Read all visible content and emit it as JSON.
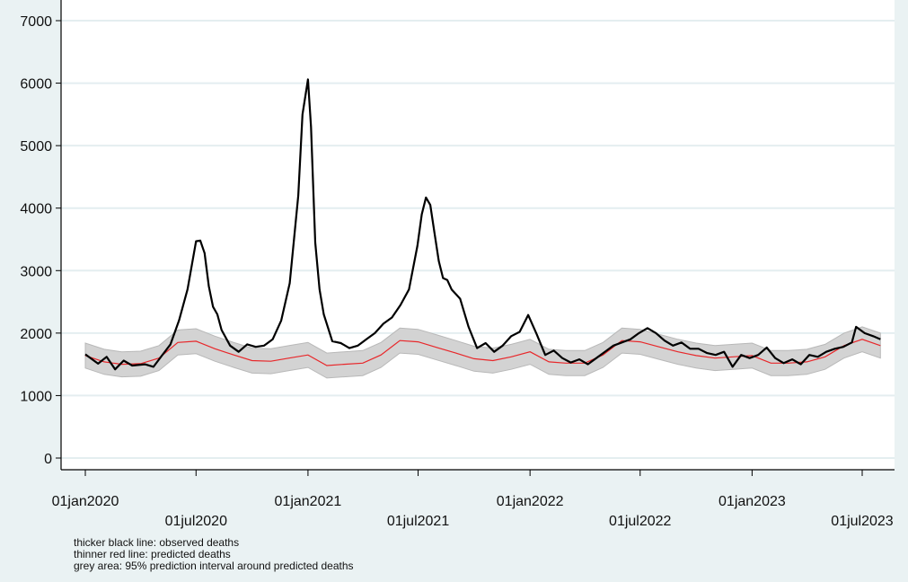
{
  "chart_data": {
    "type": "line",
    "title": "",
    "xlabel": "",
    "ylabel": "",
    "x_range": [
      "2020-01-01",
      "2023-07-31"
    ],
    "ylim": [
      0,
      7000
    ],
    "y_ticks": [
      0,
      1000,
      2000,
      3000,
      4000,
      5000,
      6000,
      7000
    ],
    "x_ticks": [
      {
        "date": "2020-01-01",
        "label": "01jan2020"
      },
      {
        "date": "2020-07-01",
        "label": "01jul2020"
      },
      {
        "date": "2021-01-01",
        "label": "01jan2021"
      },
      {
        "date": "2021-07-01",
        "label": "01jul2021"
      },
      {
        "date": "2022-01-01",
        "label": "01jan2022"
      },
      {
        "date": "2022-07-01",
        "label": "01jul2022"
      },
      {
        "date": "2023-01-01",
        "label": "01jan2023"
      },
      {
        "date": "2023-07-01",
        "label": "01jul2023"
      }
    ],
    "grid": true,
    "colors": {
      "observed": "#000000",
      "predicted": "#e8272a",
      "band": "#d3d3d3",
      "background": "#eaf2f3",
      "plot_bg": "#ffffff",
      "grid": "#e4eef0"
    },
    "series": [
      {
        "role": "observed",
        "points": [
          [
            "2020-01-01",
            1660
          ],
          [
            "2020-01-22",
            1510
          ],
          [
            "2020-02-05",
            1620
          ],
          [
            "2020-02-19",
            1420
          ],
          [
            "2020-03-04",
            1560
          ],
          [
            "2020-03-18",
            1480
          ],
          [
            "2020-04-08",
            1500
          ],
          [
            "2020-04-22",
            1460
          ],
          [
            "2020-05-06",
            1640
          ],
          [
            "2020-05-20",
            1820
          ],
          [
            "2020-06-03",
            2200
          ],
          [
            "2020-06-17",
            2700
          ],
          [
            "2020-07-01",
            3470
          ],
          [
            "2020-07-08",
            3480
          ],
          [
            "2020-07-15",
            3280
          ],
          [
            "2020-07-22",
            2750
          ],
          [
            "2020-07-29",
            2420
          ],
          [
            "2020-08-05",
            2300
          ],
          [
            "2020-08-12",
            2050
          ],
          [
            "2020-08-26",
            1800
          ],
          [
            "2020-09-09",
            1700
          ],
          [
            "2020-09-23",
            1820
          ],
          [
            "2020-10-07",
            1780
          ],
          [
            "2020-10-21",
            1800
          ],
          [
            "2020-11-04",
            1900
          ],
          [
            "2020-11-18",
            2200
          ],
          [
            "2020-12-02",
            2800
          ],
          [
            "2020-12-16",
            4200
          ],
          [
            "2020-12-23",
            5500
          ],
          [
            "2021-01-01",
            6060
          ],
          [
            "2021-01-06",
            5300
          ],
          [
            "2021-01-13",
            3450
          ],
          [
            "2021-01-20",
            2700
          ],
          [
            "2021-01-27",
            2300
          ],
          [
            "2021-02-10",
            1870
          ],
          [
            "2021-02-24",
            1840
          ],
          [
            "2021-03-10",
            1760
          ],
          [
            "2021-03-24",
            1800
          ],
          [
            "2021-04-07",
            1900
          ],
          [
            "2021-04-21",
            2000
          ],
          [
            "2021-05-05",
            2150
          ],
          [
            "2021-05-19",
            2250
          ],
          [
            "2021-06-02",
            2450
          ],
          [
            "2021-06-16",
            2700
          ],
          [
            "2021-06-30",
            3400
          ],
          [
            "2021-07-07",
            3900
          ],
          [
            "2021-07-14",
            4170
          ],
          [
            "2021-07-21",
            4050
          ],
          [
            "2021-07-28",
            3600
          ],
          [
            "2021-08-04",
            3150
          ],
          [
            "2021-08-11",
            2880
          ],
          [
            "2021-08-18",
            2850
          ],
          [
            "2021-08-25",
            2700
          ],
          [
            "2021-09-08",
            2550
          ],
          [
            "2021-09-22",
            2100
          ],
          [
            "2021-10-06",
            1760
          ],
          [
            "2021-10-20",
            1840
          ],
          [
            "2021-11-03",
            1700
          ],
          [
            "2021-11-17",
            1800
          ],
          [
            "2021-12-01",
            1950
          ],
          [
            "2021-12-15",
            2020
          ],
          [
            "2021-12-29",
            2290
          ],
          [
            "2022-01-12",
            1980
          ],
          [
            "2022-01-26",
            1650
          ],
          [
            "2022-02-09",
            1720
          ],
          [
            "2022-02-23",
            1600
          ],
          [
            "2022-03-09",
            1530
          ],
          [
            "2022-03-23",
            1580
          ],
          [
            "2022-04-06",
            1500
          ],
          [
            "2022-04-20",
            1600
          ],
          [
            "2022-05-04",
            1700
          ],
          [
            "2022-05-18",
            1800
          ],
          [
            "2022-06-01",
            1850
          ],
          [
            "2022-06-15",
            1900
          ],
          [
            "2022-06-29",
            2000
          ],
          [
            "2022-07-13",
            2080
          ],
          [
            "2022-07-27",
            2000
          ],
          [
            "2022-08-10",
            1880
          ],
          [
            "2022-08-24",
            1800
          ],
          [
            "2022-09-07",
            1850
          ],
          [
            "2022-09-21",
            1750
          ],
          [
            "2022-10-05",
            1750
          ],
          [
            "2022-10-19",
            1680
          ],
          [
            "2022-11-02",
            1650
          ],
          [
            "2022-11-16",
            1700
          ],
          [
            "2022-11-30",
            1460
          ],
          [
            "2022-12-14",
            1650
          ],
          [
            "2022-12-28",
            1600
          ],
          [
            "2023-01-11",
            1650
          ],
          [
            "2023-01-25",
            1770
          ],
          [
            "2023-02-08",
            1600
          ],
          [
            "2023-02-22",
            1520
          ],
          [
            "2023-03-08",
            1580
          ],
          [
            "2023-03-22",
            1500
          ],
          [
            "2023-04-05",
            1650
          ],
          [
            "2023-04-19",
            1620
          ],
          [
            "2023-05-03",
            1700
          ],
          [
            "2023-05-17",
            1750
          ],
          [
            "2023-05-31",
            1780
          ],
          [
            "2023-06-14",
            1850
          ],
          [
            "2023-06-21",
            2100
          ],
          [
            "2023-07-05",
            2000
          ],
          [
            "2023-07-19",
            1950
          ],
          [
            "2023-07-31",
            1900
          ]
        ]
      },
      {
        "role": "predicted",
        "points": [
          [
            "2020-01-01",
            1640
          ],
          [
            "2020-02-01",
            1540
          ],
          [
            "2020-03-01",
            1500
          ],
          [
            "2020-04-01",
            1510
          ],
          [
            "2020-05-01",
            1600
          ],
          [
            "2020-06-01",
            1850
          ],
          [
            "2020-07-01",
            1870
          ],
          [
            "2020-08-01",
            1750
          ],
          [
            "2020-09-01",
            1650
          ],
          [
            "2020-10-01",
            1560
          ],
          [
            "2020-11-01",
            1550
          ],
          [
            "2020-12-01",
            1600
          ],
          [
            "2021-01-01",
            1650
          ],
          [
            "2021-02-01",
            1480
          ],
          [
            "2021-03-01",
            1500
          ],
          [
            "2021-04-01",
            1520
          ],
          [
            "2021-05-01",
            1650
          ],
          [
            "2021-06-01",
            1880
          ],
          [
            "2021-07-01",
            1860
          ],
          [
            "2021-08-01",
            1770
          ],
          [
            "2021-09-01",
            1680
          ],
          [
            "2021-10-01",
            1590
          ],
          [
            "2021-11-01",
            1560
          ],
          [
            "2021-12-01",
            1620
          ],
          [
            "2022-01-01",
            1700
          ],
          [
            "2022-02-01",
            1540
          ],
          [
            "2022-03-01",
            1520
          ],
          [
            "2022-04-01",
            1520
          ],
          [
            "2022-05-01",
            1650
          ],
          [
            "2022-06-01",
            1880
          ],
          [
            "2022-07-01",
            1860
          ],
          [
            "2022-08-01",
            1780
          ],
          [
            "2022-09-01",
            1700
          ],
          [
            "2022-10-01",
            1640
          ],
          [
            "2022-11-01",
            1600
          ],
          [
            "2022-12-01",
            1620
          ],
          [
            "2023-01-01",
            1640
          ],
          [
            "2023-02-01",
            1520
          ],
          [
            "2023-03-01",
            1520
          ],
          [
            "2023-04-01",
            1540
          ],
          [
            "2023-05-01",
            1620
          ],
          [
            "2023-06-01",
            1800
          ],
          [
            "2023-07-01",
            1900
          ],
          [
            "2023-07-31",
            1800
          ]
        ],
        "band_halfwidth": 200
      }
    ],
    "notes": [
      "thicker black line: observed deaths",
      "thinner red line: predicted deaths",
      "grey area: 95% prediction interval around predicted deaths"
    ]
  }
}
